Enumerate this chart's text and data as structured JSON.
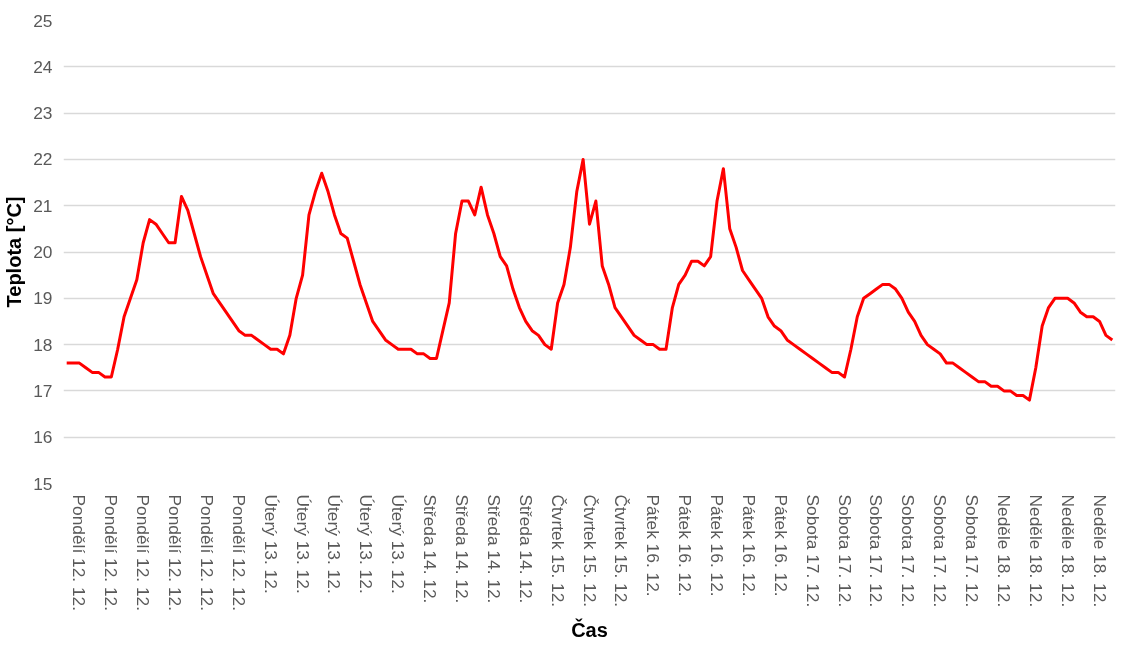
{
  "chart_data": {
    "type": "line",
    "xlabel": "Čas",
    "ylabel": "Teplota [°C]",
    "ylim": [
      15,
      25
    ],
    "yticks": [
      15,
      16,
      17,
      18,
      19,
      20,
      21,
      22,
      23,
      24,
      25
    ],
    "categories": [
      null,
      null,
      "Pondělí 12. 12.",
      null,
      null,
      null,
      null,
      "Pondělí 12. 12.",
      null,
      null,
      null,
      null,
      "Pondělí 12. 12.",
      null,
      null,
      null,
      null,
      "Pondělí 12. 12.",
      null,
      null,
      null,
      null,
      "Pondělí 12. 12.",
      null,
      null,
      null,
      null,
      "Pondělí 12. 12.",
      null,
      null,
      null,
      null,
      "Úterý 13. 12.",
      null,
      null,
      null,
      null,
      "Úterý 13. 12.",
      null,
      null,
      null,
      null,
      "Úterý 13. 12.",
      null,
      null,
      null,
      null,
      "Úterý 13. 12.",
      null,
      null,
      null,
      null,
      "Úterý 13. 12.",
      null,
      null,
      null,
      null,
      "Středa 14. 12.",
      null,
      null,
      null,
      null,
      "Středa 14. 12.",
      null,
      null,
      null,
      null,
      "Středa 14. 12.",
      null,
      null,
      null,
      null,
      "Středa 14. 12.",
      null,
      null,
      null,
      null,
      "Čtvrtek 15. 12.",
      null,
      null,
      null,
      null,
      "Čtvrtek 15. 12.",
      null,
      null,
      null,
      null,
      "Čtvrtek 15. 12.",
      null,
      null,
      null,
      null,
      "Pátek 16. 12.",
      null,
      null,
      null,
      null,
      "Pátek 16. 12.",
      null,
      null,
      null,
      null,
      "Pátek 16. 12.",
      null,
      null,
      null,
      null,
      "Pátek 16. 12.",
      null,
      null,
      null,
      null,
      "Pátek 16. 12.",
      null,
      null,
      null,
      null,
      "Sobota 17. 12.",
      null,
      null,
      null,
      null,
      "Sobota 17. 12.",
      null,
      null,
      null,
      null,
      "Sobota 17. 12.",
      null,
      null,
      null,
      null,
      "Sobota 17. 12.",
      null,
      null,
      null,
      null,
      "Sobota 17. 12.",
      null,
      null,
      null,
      null,
      "Sobota 17. 12.",
      null,
      null,
      null,
      null,
      "Neděle 18. 12.",
      null,
      null,
      null,
      null,
      "Neděle 18. 12.",
      null,
      null,
      null,
      null,
      "Neděle 18. 12.",
      null,
      null,
      null,
      null,
      "Neděle 18. 12.",
      null,
      null
    ],
    "grid": "y",
    "line_style": "solid",
    "marker": "none",
    "series": [
      {
        "color": "#ff0000",
        "values": [
          17.6,
          17.6,
          17.6,
          17.5,
          17.4,
          17.4,
          17.3,
          17.3,
          17.9,
          18.6,
          19.0,
          19.4,
          20.2,
          20.7,
          20.6,
          20.4,
          20.2,
          20.2,
          21.2,
          20.9,
          20.4,
          19.9,
          19.5,
          19.1,
          18.9,
          18.7,
          18.5,
          18.3,
          18.2,
          18.2,
          18.1,
          18.0,
          17.9,
          17.9,
          17.8,
          18.2,
          19.0,
          19.5,
          20.8,
          21.3,
          21.7,
          21.3,
          20.8,
          20.4,
          20.3,
          19.8,
          19.3,
          18.9,
          18.5,
          18.3,
          18.1,
          18.0,
          17.9,
          17.9,
          17.9,
          17.8,
          17.8,
          17.7,
          17.7,
          18.3,
          18.9,
          20.4,
          21.1,
          21.1,
          20.8,
          21.4,
          20.8,
          20.4,
          19.9,
          19.7,
          19.2,
          18.8,
          18.5,
          18.3,
          18.2,
          18.0,
          17.9,
          18.9,
          19.3,
          20.1,
          21.3,
          22.0,
          20.6,
          21.1,
          19.7,
          19.3,
          18.8,
          18.6,
          18.4,
          18.2,
          18.1,
          18.0,
          18.0,
          17.9,
          17.9,
          18.8,
          19.3,
          19.5,
          19.8,
          19.8,
          19.7,
          19.9,
          21.1,
          21.8,
          20.5,
          20.1,
          19.6,
          19.4,
          19.2,
          19.0,
          18.6,
          18.4,
          18.3,
          18.1,
          18.0,
          17.9,
          17.8,
          17.7,
          17.6,
          17.5,
          17.4,
          17.4,
          17.3,
          17.9,
          18.6,
          19.0,
          19.1,
          19.2,
          19.3,
          19.3,
          19.2,
          19.0,
          18.7,
          18.5,
          18.2,
          18.0,
          17.9,
          17.8,
          17.6,
          17.6,
          17.5,
          17.4,
          17.3,
          17.2,
          17.2,
          17.1,
          17.1,
          17.0,
          17.0,
          16.9,
          16.9,
          16.8,
          17.5,
          18.4,
          18.8,
          19.0,
          19.0,
          19.0,
          18.9,
          18.7,
          18.6,
          18.6,
          18.5,
          18.2,
          18.1
        ]
      }
    ]
  }
}
